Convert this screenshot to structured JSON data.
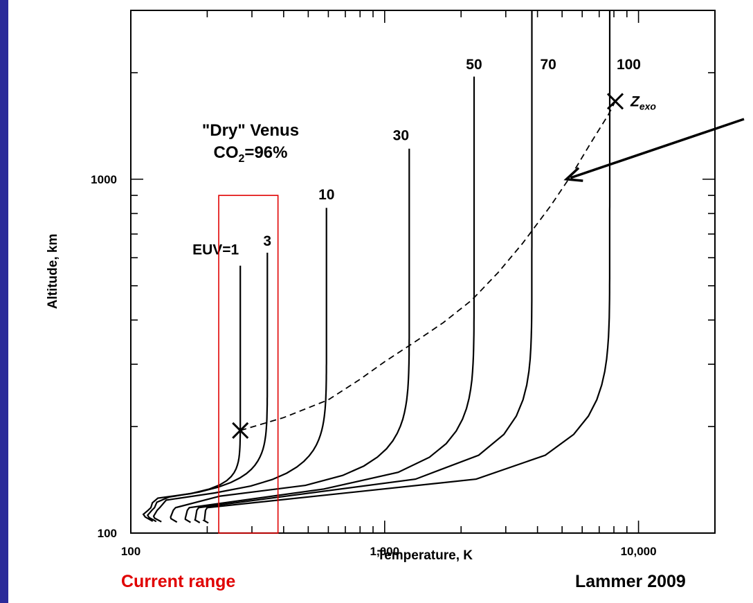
{
  "colors": {
    "slide_border": "#2b2b9a",
    "highlight": "#e00000",
    "ink": "#000000"
  },
  "chart_data": {
    "type": "line",
    "title": "\"Dry\" Venus",
    "subtitle": "CO2=96%",
    "subtitle_parts": {
      "base": "CO",
      "sub": "2",
      "rest": "=96%"
    },
    "xlabel": "Temperature, K",
    "ylabel": "Altitude, km",
    "x_scale": "log",
    "y_scale": "log",
    "xlim": [
      100,
      20000
    ],
    "ylim": [
      100,
      3000
    ],
    "x_ticks": [
      {
        "value": 100,
        "label": "100"
      },
      {
        "value": 1000,
        "label": "1,000"
      },
      {
        "value": 10000,
        "label": "10,000"
      }
    ],
    "y_ticks": [
      {
        "value": 100,
        "label": "100"
      },
      {
        "value": 1000,
        "label": "1000"
      }
    ],
    "grid": false,
    "legend": "none",
    "series": [
      {
        "label": "EUV=1",
        "base_temp": 120,
        "t_inf": 270,
        "top_alt": 570
      },
      {
        "label": "3",
        "base_temp": 124,
        "t_inf": 345,
        "top_alt": 620
      },
      {
        "label": "10",
        "base_temp": 130,
        "t_inf": 590,
        "top_alt": 830
      },
      {
        "label": "30",
        "base_temp": 150,
        "t_inf": 1250,
        "top_alt": 1220
      },
      {
        "label": "50",
        "base_temp": 170,
        "t_inf": 2250,
        "top_alt": 1950
      },
      {
        "label": "70",
        "base_temp": 185,
        "t_inf": 3800,
        "top_alt": 3000
      },
      {
        "label": "100",
        "base_temp": 200,
        "t_inf": 7700,
        "top_alt": 3000
      }
    ],
    "exobase_curve": {
      "points": [
        [
          270,
          195
        ],
        [
          400,
          212
        ],
        [
          600,
          238
        ],
        [
          800,
          272
        ],
        [
          1000,
          305
        ],
        [
          1300,
          345
        ],
        [
          1700,
          393
        ],
        [
          2200,
          455
        ],
        [
          2800,
          545
        ],
        [
          3500,
          660
        ],
        [
          4500,
          840
        ],
        [
          5500,
          1040
        ],
        [
          6500,
          1270
        ],
        [
          7600,
          1520
        ],
        [
          8100,
          1660
        ]
      ]
    },
    "markers": [
      {
        "label": "",
        "x": 270,
        "y": 195
      },
      {
        "label": "Z",
        "sub": "exo",
        "x": 8100,
        "y": 1660
      }
    ],
    "annotations": [
      {
        "type": "arrow",
        "to": [
          5200,
          1000
        ],
        "note": ""
      },
      {
        "type": "box",
        "x_range": [
          222,
          380
        ],
        "y_range": [
          100,
          900
        ],
        "color": "#e00000"
      }
    ]
  },
  "captions": {
    "left": "Current range",
    "right": "Lammer 2009"
  }
}
